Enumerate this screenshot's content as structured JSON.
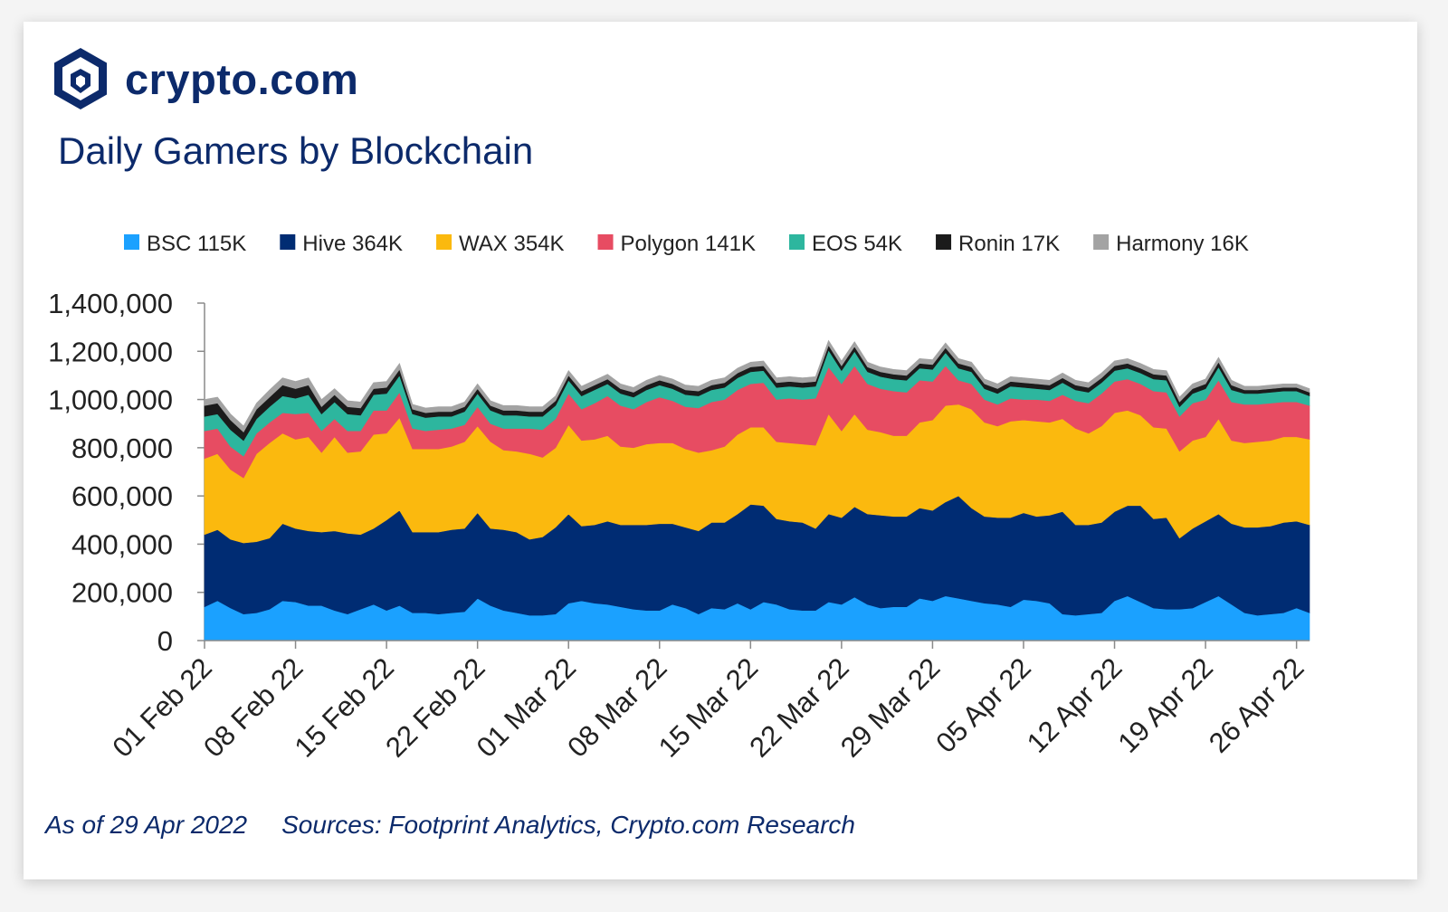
{
  "brand": {
    "name": "crypto.com",
    "logo_icon": "crypto-com-lion-shield-icon"
  },
  "chart_data": {
    "type": "area",
    "stacked": true,
    "title": "Daily Gamers by Blockchain",
    "xlabel": "",
    "ylabel": "",
    "ylim": [
      0,
      1400000
    ],
    "y_ticks": [
      0,
      200000,
      400000,
      600000,
      800000,
      1000000,
      1200000,
      1400000
    ],
    "y_tick_labels": [
      "0",
      "200,000",
      "400,000",
      "600,000",
      "800,000",
      "1,000,000",
      "1,200,000",
      "1,400,000"
    ],
    "x_tick_labels": [
      "01 Feb 22",
      "08 Feb 22",
      "15 Feb 22",
      "22 Feb 22",
      "01 Mar 22",
      "08 Mar 22",
      "15 Mar 22",
      "22 Mar 22",
      "29 Mar 22",
      "05 Apr 22",
      "12 Apr 22",
      "19 Apr 22",
      "26 Apr 22"
    ],
    "x_tick_day_index": [
      0,
      7,
      14,
      21,
      28,
      35,
      42,
      49,
      56,
      63,
      70,
      77,
      84
    ],
    "start_date": "01 Feb 22",
    "num_days": 86,
    "legend_position": "top",
    "series": [
      {
        "name": "BSC",
        "legend_label": "BSC 115K",
        "color": "#1ba1ff",
        "values": [
          140000,
          165000,
          135000,
          110000,
          115000,
          130000,
          165000,
          160000,
          145000,
          145000,
          125000,
          110000,
          130000,
          150000,
          125000,
          145000,
          115000,
          115000,
          110000,
          115000,
          120000,
          175000,
          145000,
          125000,
          115000,
          105000,
          105000,
          110000,
          155000,
          165000,
          155000,
          150000,
          140000,
          130000,
          125000,
          125000,
          150000,
          135000,
          110000,
          135000,
          130000,
          155000,
          130000,
          160000,
          150000,
          130000,
          125000,
          125000,
          160000,
          150000,
          180000,
          150000,
          135000,
          140000,
          140000,
          175000,
          165000,
          185000,
          175000,
          165000,
          155000,
          150000,
          140000,
          170000,
          165000,
          155000,
          110000,
          105000,
          110000,
          115000,
          165000,
          185000,
          160000,
          135000,
          130000,
          130000,
          135000,
          160000,
          185000,
          150000,
          115000,
          105000,
          110000,
          115000,
          135000,
          115000
        ]
      },
      {
        "name": "Hive",
        "legend_label": "Hive 364K",
        "color": "#002c73",
        "values": [
          300000,
          295000,
          285000,
          295000,
          295000,
          295000,
          320000,
          305000,
          310000,
          305000,
          330000,
          335000,
          310000,
          315000,
          375000,
          395000,
          335000,
          335000,
          340000,
          345000,
          345000,
          355000,
          320000,
          335000,
          335000,
          315000,
          325000,
          360000,
          370000,
          310000,
          325000,
          345000,
          340000,
          350000,
          355000,
          360000,
          335000,
          335000,
          345000,
          355000,
          360000,
          370000,
          435000,
          400000,
          355000,
          365000,
          365000,
          340000,
          365000,
          360000,
          375000,
          375000,
          385000,
          375000,
          375000,
          375000,
          375000,
          390000,
          425000,
          385000,
          360000,
          360000,
          370000,
          360000,
          350000,
          365000,
          425000,
          375000,
          370000,
          375000,
          370000,
          375000,
          400000,
          370000,
          380000,
          295000,
          330000,
          335000,
          340000,
          335000,
          355000,
          365000,
          365000,
          375000,
          360000,
          365000
        ]
      },
      {
        "name": "WAX",
        "legend_label": "WAX 354K",
        "color": "#fbb90e",
        "values": [
          315000,
          315000,
          290000,
          270000,
          365000,
          395000,
          375000,
          370000,
          390000,
          330000,
          390000,
          335000,
          345000,
          390000,
          360000,
          385000,
          345000,
          345000,
          345000,
          345000,
          360000,
          360000,
          360000,
          330000,
          335000,
          355000,
          330000,
          330000,
          370000,
          355000,
          355000,
          355000,
          325000,
          320000,
          335000,
          335000,
          335000,
          325000,
          325000,
          300000,
          315000,
          330000,
          320000,
          325000,
          320000,
          325000,
          325000,
          345000,
          415000,
          360000,
          385000,
          350000,
          345000,
          335000,
          335000,
          355000,
          375000,
          400000,
          380000,
          410000,
          390000,
          380000,
          400000,
          385000,
          395000,
          385000,
          385000,
          400000,
          380000,
          400000,
          410000,
          395000,
          375000,
          380000,
          370000,
          360000,
          365000,
          350000,
          395000,
          345000,
          350000,
          355000,
          355000,
          355000,
          350000,
          355000
        ]
      },
      {
        "name": "Polygon",
        "legend_label": "Polygon 141K",
        "color": "#e74c62",
        "values": [
          115000,
          105000,
          95000,
          90000,
          85000,
          85000,
          85000,
          105000,
          100000,
          90000,
          75000,
          90000,
          85000,
          100000,
          95000,
          105000,
          85000,
          75000,
          80000,
          75000,
          70000,
          80000,
          75000,
          90000,
          95000,
          105000,
          115000,
          120000,
          130000,
          130000,
          150000,
          165000,
          170000,
          160000,
          175000,
          190000,
          175000,
          175000,
          185000,
          200000,
          195000,
          185000,
          180000,
          185000,
          175000,
          185000,
          185000,
          195000,
          195000,
          195000,
          200000,
          190000,
          180000,
          185000,
          180000,
          175000,
          160000,
          165000,
          100000,
          105000,
          95000,
          90000,
          95000,
          85000,
          90000,
          90000,
          100000,
          115000,
          125000,
          135000,
          130000,
          130000,
          130000,
          150000,
          150000,
          145000,
          155000,
          155000,
          160000,
          160000,
          160000,
          155000,
          155000,
          145000,
          145000,
          140000
        ]
      },
      {
        "name": "EOS",
        "legend_label": "EOS 54K",
        "color": "#2db69e",
        "values": [
          60000,
          60000,
          70000,
          65000,
          60000,
          65000,
          70000,
          65000,
          75000,
          70000,
          70000,
          70000,
          65000,
          65000,
          70000,
          70000,
          60000,
          55000,
          55000,
          50000,
          55000,
          55000,
          55000,
          55000,
          55000,
          50000,
          55000,
          55000,
          55000,
          55000,
          55000,
          50000,
          50000,
          50000,
          50000,
          50000,
          50000,
          50000,
          50000,
          50000,
          50000,
          50000,
          50000,
          50000,
          50000,
          50000,
          50000,
          50000,
          70000,
          55000,
          60000,
          50000,
          50000,
          50000,
          50000,
          50000,
          50000,
          55000,
          50000,
          50000,
          45000,
          45000,
          50000,
          50000,
          45000,
          45000,
          50000,
          45000,
          45000,
          45000,
          45000,
          45000,
          45000,
          50000,
          50000,
          40000,
          40000,
          45000,
          55000,
          50000,
          45000,
          45000,
          45000,
          45000,
          45000,
          40000
        ]
      },
      {
        "name": "Ronin",
        "legend_label": "Ronin 17K",
        "color": "#1b1b1b",
        "values": [
          45000,
          45000,
          40000,
          35000,
          40000,
          40000,
          45000,
          40000,
          40000,
          30000,
          30000,
          30000,
          30000,
          25000,
          25000,
          25000,
          20000,
          20000,
          20000,
          20000,
          20000,
          20000,
          20000,
          20000,
          20000,
          20000,
          20000,
          20000,
          20000,
          20000,
          20000,
          20000,
          20000,
          20000,
          20000,
          20000,
          20000,
          20000,
          20000,
          20000,
          20000,
          20000,
          20000,
          20000,
          20000,
          20000,
          20000,
          20000,
          20000,
          20000,
          20000,
          20000,
          20000,
          20000,
          20000,
          20000,
          20000,
          20000,
          20000,
          20000,
          20000,
          20000,
          20000,
          20000,
          20000,
          20000,
          20000,
          20000,
          20000,
          20000,
          20000,
          20000,
          20000,
          20000,
          20000,
          20000,
          20000,
          20000,
          20000,
          20000,
          15000,
          15000,
          15000,
          15000,
          15000,
          15000
        ]
      },
      {
        "name": "Harmony",
        "legend_label": "Harmony 16K",
        "color": "#a3a3a3",
        "values": [
          25000,
          25000,
          25000,
          25000,
          25000,
          30000,
          30000,
          30000,
          30000,
          30000,
          25000,
          25000,
          25000,
          25000,
          25000,
          25000,
          20000,
          20000,
          20000,
          20000,
          20000,
          20000,
          20000,
          20000,
          20000,
          20000,
          20000,
          20000,
          20000,
          20000,
          20000,
          20000,
          20000,
          20000,
          20000,
          20000,
          20000,
          20000,
          20000,
          20000,
          20000,
          20000,
          20000,
          20000,
          20000,
          20000,
          20000,
          20000,
          20000,
          20000,
          20000,
          20000,
          20000,
          20000,
          20000,
          20000,
          20000,
          20000,
          20000,
          20000,
          20000,
          20000,
          20000,
          20000,
          20000,
          20000,
          20000,
          20000,
          20000,
          20000,
          20000,
          20000,
          20000,
          20000,
          20000,
          20000,
          20000,
          20000,
          20000,
          20000,
          15000,
          15000,
          15000,
          15000,
          15000,
          15000
        ]
      }
    ]
  },
  "footer": {
    "as_of": "As of 29 Apr 2022",
    "sources": "Sources: Footprint Analytics, Crypto.com Research"
  }
}
